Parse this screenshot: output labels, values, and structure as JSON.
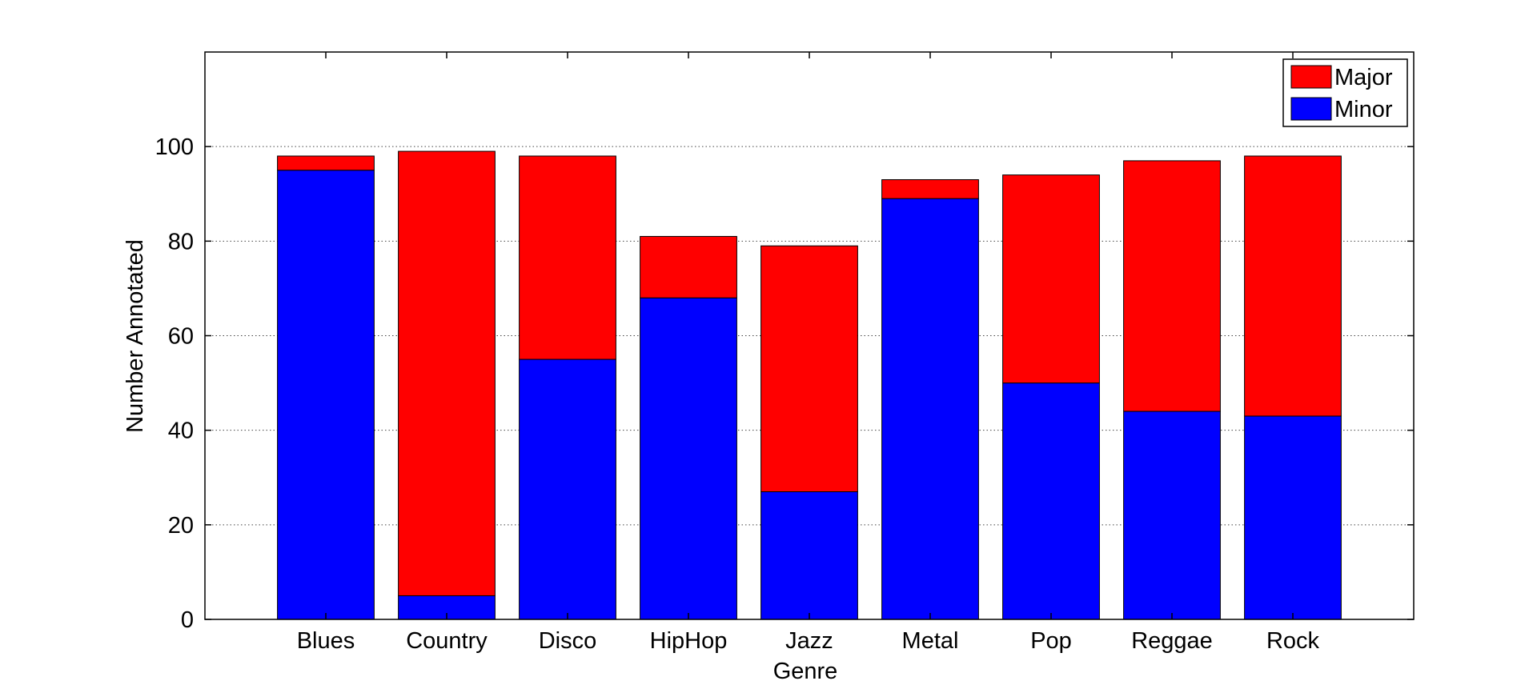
{
  "chart_data": {
    "type": "bar",
    "stacked": true,
    "categories": [
      "Blues",
      "Country",
      "Disco",
      "HipHop",
      "Jazz",
      "Metal",
      "Pop",
      "Reggae",
      "Rock"
    ],
    "series": [
      {
        "name": "Minor",
        "values": [
          95,
          5,
          55,
          68,
          27,
          89,
          50,
          44,
          43
        ],
        "color": "#0000ff"
      },
      {
        "name": "Major",
        "values": [
          3,
          94,
          43,
          13,
          52,
          4,
          44,
          53,
          55
        ],
        "color": "#ff0000"
      }
    ],
    "title": "",
    "xlabel": "Genre",
    "ylabel": "Number Annotated",
    "ylim": [
      0,
      120
    ],
    "yticks": [
      0,
      20,
      40,
      60,
      80,
      100
    ],
    "grid": "horizontal-dotted",
    "legend": {
      "position": "top-right",
      "entries": [
        {
          "label": "Major",
          "color": "#ff0000"
        },
        {
          "label": "Minor",
          "color": "#0000ff"
        }
      ]
    }
  }
}
